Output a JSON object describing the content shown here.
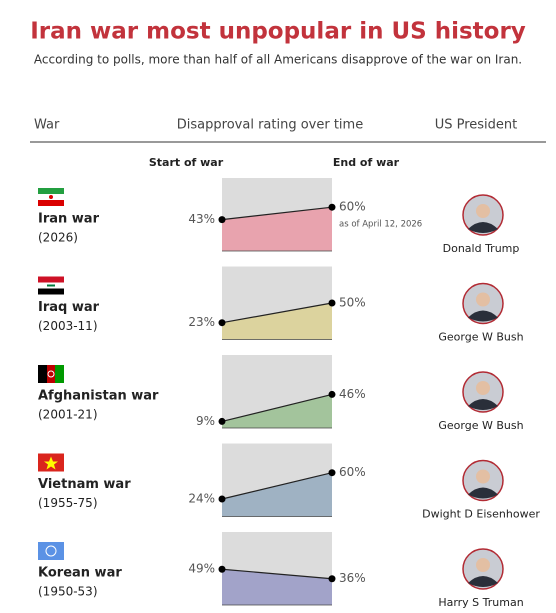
{
  "chart_data": {
    "type": "slope-area",
    "title": "Iran war most unpopular in US history",
    "subtitle": "According to polls, more than half of all Americans disapprove of the war on Iran.",
    "column_headers": [
      "War",
      "Disapproval rating over time",
      "US President"
    ],
    "categories": [
      "Iran war",
      "Iraq war",
      "Afghanistan war",
      "Vietnam war",
      "Korean war"
    ],
    "years": [
      "(2026)",
      "(2003-11)",
      "(2001-21)",
      "(1955-75)",
      "(1950-53)"
    ],
    "presidents": [
      "Donald Trump",
      "George W Bush",
      "George W Bush",
      "Dwight D Eisenhower",
      "Harry S Truman"
    ],
    "colors": [
      "#e8a3ae",
      "#dcd39e",
      "#a3c49c",
      "#9fb2c3",
      "#a2a3c9"
    ],
    "series": [
      {
        "name": "Start of war",
        "values": [
          43,
          23,
          9,
          24,
          49
        ],
        "value_labels": [
          "43%",
          "23%",
          "9%",
          "24%",
          "49%"
        ]
      },
      {
        "name": "End of war",
        "values": [
          60,
          50,
          46,
          60,
          36
        ],
        "value_labels": [
          "60%",
          "50%",
          "46%",
          "60%",
          "36%"
        ]
      }
    ],
    "note": "as of April 12, 2026",
    "ylim": [
      0,
      100
    ]
  }
}
